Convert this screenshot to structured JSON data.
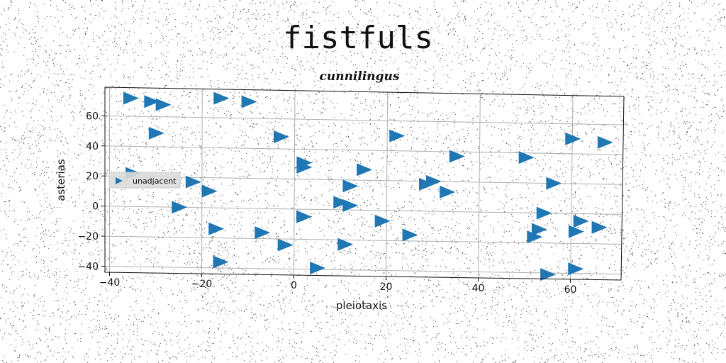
{
  "chart_data": {
    "type": "scatter",
    "title": "fistfuls",
    "subtitle": "cunnilingus",
    "xlabel": "pleiotaxis",
    "ylabel": "asterias",
    "xlim": [
      -41,
      71
    ],
    "ylim": [
      -44,
      79
    ],
    "xticks": [
      -40,
      -20,
      0,
      20,
      40,
      60
    ],
    "yticks": [
      -40,
      -20,
      0,
      20,
      40,
      60
    ],
    "grid": true,
    "legend_placement": "center-left",
    "marker": "triangle-right",
    "color": "#1f77b4",
    "series": [
      {
        "name": "unadjacent",
        "points": [
          [
            -35.5,
            72
          ],
          [
            -31,
            70
          ],
          [
            -28.5,
            68
          ],
          [
            -16,
            73
          ],
          [
            -10,
            71
          ],
          [
            -30,
            49
          ],
          [
            -3,
            48
          ],
          [
            22,
            50
          ],
          [
            35,
            37
          ],
          [
            50,
            37
          ],
          [
            60,
            50
          ],
          [
            67,
            48
          ],
          [
            2,
            31
          ],
          [
            15,
            27
          ],
          [
            2,
            28
          ],
          [
            30,
            20
          ],
          [
            28.5,
            18
          ],
          [
            33,
            13
          ],
          [
            56,
            20
          ],
          [
            -35,
            22
          ],
          [
            -22,
            17
          ],
          [
            -18.5,
            11
          ],
          [
            12,
            16
          ],
          [
            -25,
            0
          ],
          [
            10,
            5
          ],
          [
            12,
            3
          ],
          [
            2,
            -5
          ],
          [
            19,
            -7
          ],
          [
            54,
            0
          ],
          [
            62,
            -5
          ],
          [
            -17,
            -14
          ],
          [
            -7,
            -16
          ],
          [
            25,
            -16
          ],
          [
            52,
            -16
          ],
          [
            53,
            -11
          ],
          [
            61,
            -12
          ],
          [
            66,
            -9
          ],
          [
            -2,
            -24
          ],
          [
            11,
            -23
          ],
          [
            -16,
            -36
          ],
          [
            5,
            -39
          ],
          [
            55,
            -41
          ],
          [
            61,
            -37
          ]
        ]
      }
    ]
  }
}
